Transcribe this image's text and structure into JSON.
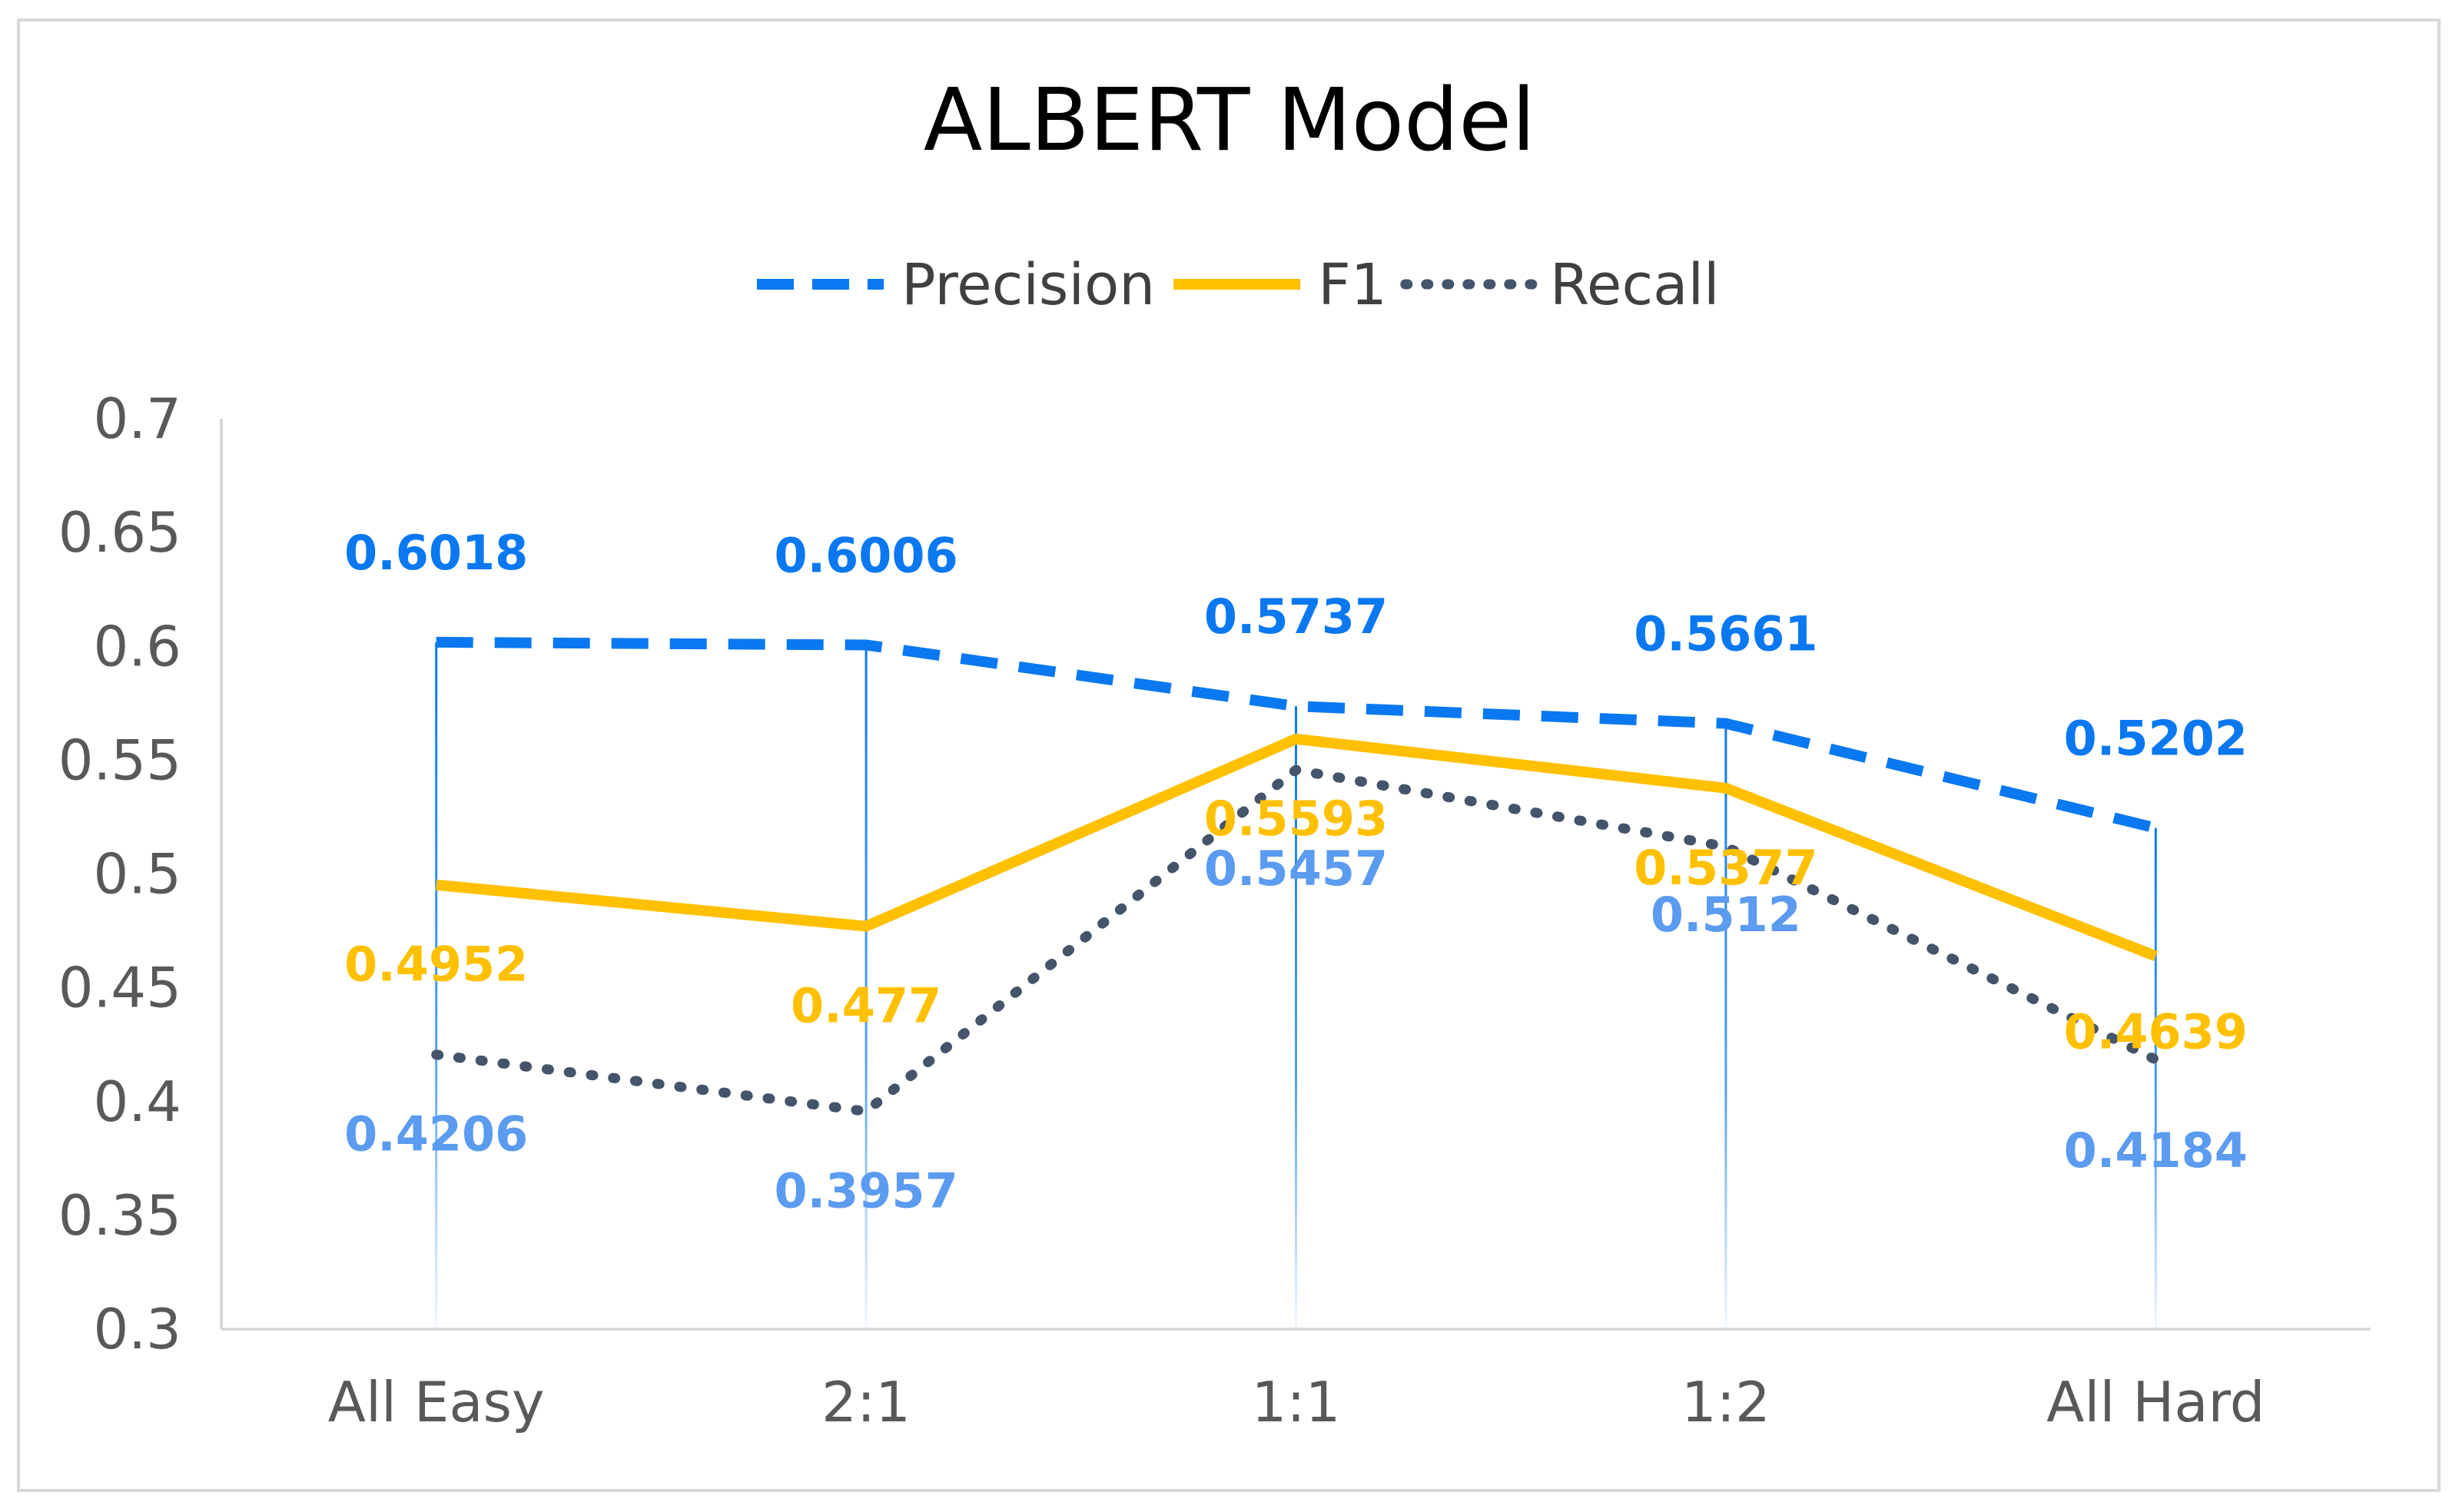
{
  "chart_data": {
    "type": "line",
    "title": "ALBERT Model",
    "categories": [
      "All Easy",
      "2:1",
      "1:1",
      "1:2",
      "All Hard"
    ],
    "series": [
      {
        "name": "Precision",
        "values": [
          0.6018,
          0.6006,
          0.5737,
          0.5661,
          0.5202
        ],
        "labels": [
          "0.6018",
          "0.6006",
          "0.5737",
          "0.5661",
          "0.5202"
        ],
        "color": "#0A78F0",
        "line_style": "dashed"
      },
      {
        "name": "F1",
        "values": [
          0.4952,
          0.477,
          0.5593,
          0.5377,
          0.4639
        ],
        "labels": [
          "0.4952",
          "0.477",
          "0.5593",
          "0.5377",
          "0.4639"
        ],
        "color": "#FFC000",
        "line_style": "solid"
      },
      {
        "name": "Recall",
        "values": [
          0.4206,
          0.3957,
          0.5457,
          0.512,
          0.4184
        ],
        "labels": [
          "0.4206",
          "0.3957",
          "0.5457",
          "0.512",
          "0.4184"
        ],
        "color": "#44546A",
        "label_color": "#5B9BF0",
        "line_style": "dotted"
      }
    ],
    "y_ticks": [
      "0.3",
      "0.35",
      "0.4",
      "0.45",
      "0.5",
      "0.55",
      "0.6",
      "0.65",
      "0.7"
    ],
    "ylim": [
      0.3,
      0.7
    ],
    "xlabel": "",
    "ylabel": "",
    "grid": false,
    "drop_lines": true,
    "legend_position": "top"
  }
}
